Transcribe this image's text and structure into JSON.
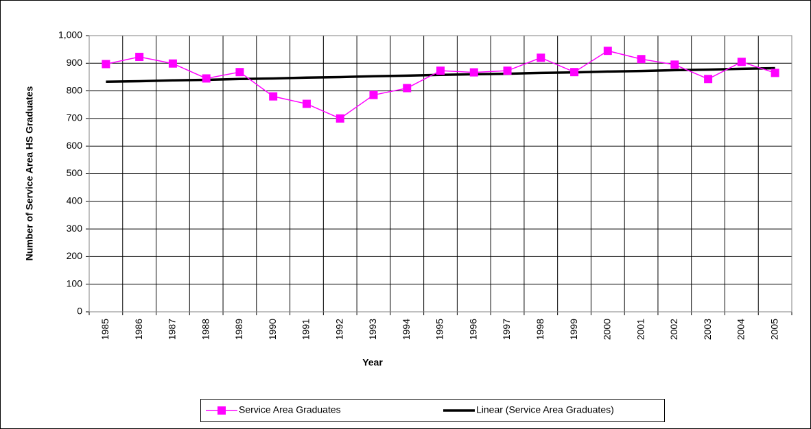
{
  "chart_data": {
    "type": "line",
    "x_label": "Year",
    "y_label": "Number of Service Area HS Graduates",
    "categories": [
      "1985",
      "1986",
      "1987",
      "1988",
      "1989",
      "1990",
      "1991",
      "1992",
      "1993",
      "1994",
      "1995",
      "1996",
      "1997",
      "1998",
      "1999",
      "2000",
      "2001",
      "2002",
      "2003",
      "2004",
      "2005"
    ],
    "series": [
      {
        "name": "Service Area Graduates",
        "color": "#ff00ff",
        "marker": "square",
        "values": [
          897,
          923,
          899,
          845,
          868,
          780,
          753,
          700,
          785,
          810,
          873,
          867,
          873,
          920,
          868,
          945,
          915,
          895,
          843,
          905,
          865
        ]
      },
      {
        "name": "Linear (Service Area Graduates)",
        "color": "#000000",
        "values": [
          833,
          835,
          838,
          840,
          843,
          845,
          848,
          850,
          853,
          855,
          858,
          860,
          862,
          865,
          867,
          870,
          872,
          875,
          877,
          880,
          882
        ]
      }
    ],
    "ylim": [
      0,
      1000
    ],
    "yticks": [
      0,
      100,
      200,
      300,
      400,
      500,
      600,
      700,
      800,
      900,
      {
        "value": 1000,
        "label": "1,000"
      }
    ],
    "grid": true,
    "legend": "bottom"
  }
}
